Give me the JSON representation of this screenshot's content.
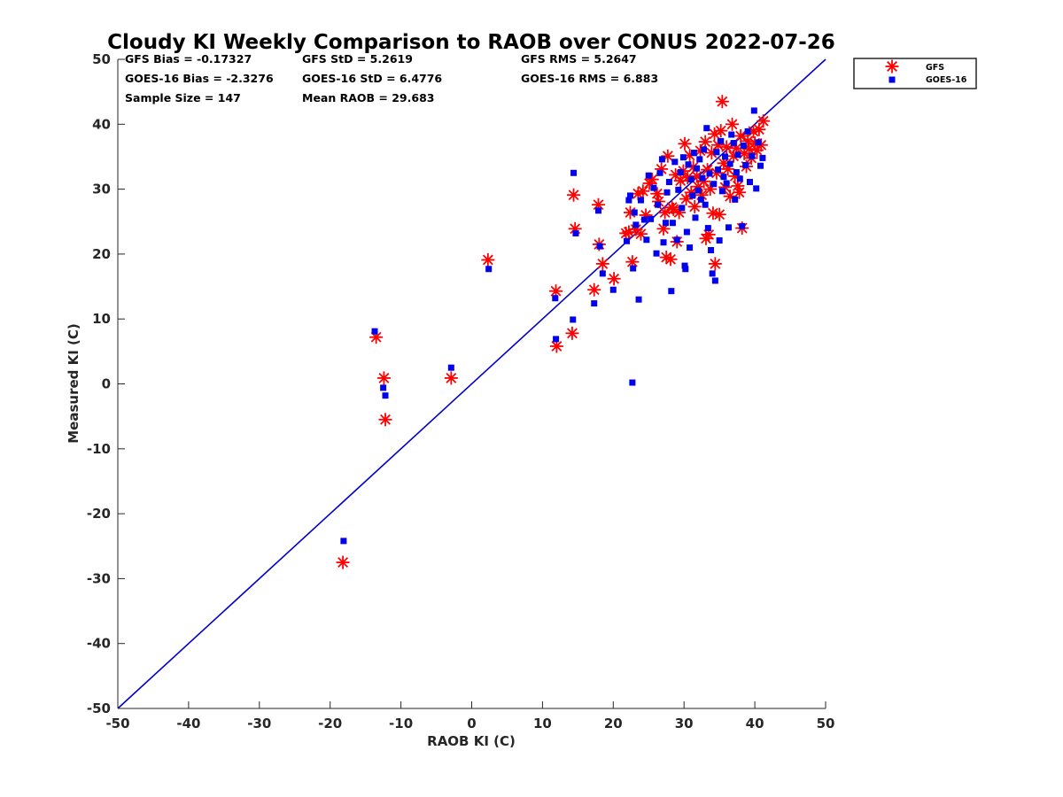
{
  "chart_data": {
    "type": "scatter",
    "title": "Cloudy KI Weekly Comparison to RAOB over CONUS 2022-07-26",
    "xlabel": "RAOB KI (C)",
    "ylabel": "Measured KI (C)",
    "xlim": [
      -50,
      50
    ],
    "ylim": [
      -50,
      50
    ],
    "xticks": [
      "-50",
      "-40",
      "-30",
      "-20",
      "-10",
      "0",
      "10",
      "20",
      "30",
      "40",
      "50"
    ],
    "yticks": [
      "-50",
      "-40",
      "-30",
      "-20",
      "-10",
      "0",
      "10",
      "20",
      "30",
      "40",
      "50"
    ],
    "grid": false,
    "legend_position": "outside-top-right",
    "reference_line": {
      "label": "",
      "x": [
        -50,
        50
      ],
      "y": [
        -50,
        50
      ],
      "color": "#0000cc"
    },
    "stats": [
      [
        "GFS Bias = -0.17327",
        "GFS StD = 5.2619",
        "GFS RMS = 5.2647"
      ],
      [
        "GOES-16 Bias = -2.3276",
        "GOES-16 StD = 6.4776",
        "GOES-16 RMS = 6.883"
      ],
      [
        "Sample Size = 147",
        "Mean RAOB = 29.683",
        ""
      ]
    ],
    "series": [
      {
        "name": "GFS",
        "marker": "asterisk",
        "color": "#ff0000",
        "points": [
          [
            -18.2,
            -27.5
          ],
          [
            -13.5,
            7.2
          ],
          [
            -12.4,
            0.9
          ],
          [
            -12.2,
            -5.5
          ],
          [
            -2.9,
            0.9
          ],
          [
            2.3,
            19.1
          ],
          [
            11.9,
            14.3
          ],
          [
            12.0,
            5.8
          ],
          [
            14.2,
            7.8
          ],
          [
            14.4,
            29.1
          ],
          [
            14.6,
            23.9
          ],
          [
            17.3,
            14.5
          ],
          [
            17.9,
            27.6
          ],
          [
            18.0,
            21.5
          ],
          [
            18.5,
            18.5
          ],
          [
            20.1,
            16.2
          ],
          [
            21.8,
            23.2
          ],
          [
            22.2,
            23.4
          ],
          [
            22.4,
            26.4
          ],
          [
            22.7,
            18.8
          ],
          [
            23.2,
            23.8
          ],
          [
            23.5,
            29.3
          ],
          [
            23.9,
            23.1
          ],
          [
            24.2,
            29.7
          ],
          [
            24.6,
            26.0
          ],
          [
            25.1,
            30.9
          ],
          [
            25.5,
            31.5
          ],
          [
            26.2,
            29.3
          ],
          [
            26.4,
            28.1
          ],
          [
            26.8,
            33.1
          ],
          [
            27.1,
            23.9
          ],
          [
            27.3,
            26.4
          ],
          [
            27.5,
            19.5
          ],
          [
            27.7,
            35.1
          ],
          [
            28.1,
            19.2
          ],
          [
            28.3,
            27.2
          ],
          [
            28.5,
            26.9
          ],
          [
            28.8,
            32.2
          ],
          [
            29.0,
            21.9
          ],
          [
            29.3,
            26.4
          ],
          [
            29.5,
            31.3
          ],
          [
            29.9,
            32.8
          ],
          [
            30.1,
            37.0
          ],
          [
            30.3,
            28.5
          ],
          [
            30.5,
            31.8
          ],
          [
            30.8,
            35.2
          ],
          [
            31.0,
            29.5
          ],
          [
            31.3,
            33.4
          ],
          [
            31.5,
            27.3
          ],
          [
            31.8,
            32.0
          ],
          [
            32.0,
            30.4
          ],
          [
            32.3,
            35.9
          ],
          [
            32.5,
            29.1
          ],
          [
            32.8,
            31.2
          ],
          [
            33.0,
            37.3
          ],
          [
            33.1,
            22.4
          ],
          [
            33.3,
            33.0
          ],
          [
            33.5,
            23.0
          ],
          [
            33.7,
            30.0
          ],
          [
            33.9,
            35.6
          ],
          [
            34.1,
            26.3
          ],
          [
            34.3,
            38.5
          ],
          [
            34.4,
            18.5
          ],
          [
            34.6,
            32.5
          ],
          [
            34.8,
            36.8
          ],
          [
            35.0,
            26.1
          ],
          [
            35.2,
            39.0
          ],
          [
            35.4,
            43.5
          ],
          [
            35.6,
            34.0
          ],
          [
            35.8,
            30.3
          ],
          [
            36.0,
            36.5
          ],
          [
            36.2,
            33.1
          ],
          [
            36.5,
            28.9
          ],
          [
            36.8,
            40.0
          ],
          [
            37.0,
            35.1
          ],
          [
            37.2,
            32.0
          ],
          [
            37.4,
            36.3
          ],
          [
            37.6,
            30.5
          ],
          [
            37.8,
            29.5
          ],
          [
            38.0,
            38.2
          ],
          [
            38.2,
            24.0
          ],
          [
            38.5,
            35.5
          ],
          [
            38.8,
            33.5
          ],
          [
            39.0,
            37.4
          ],
          [
            39.2,
            36.2
          ],
          [
            39.5,
            34.8
          ],
          [
            39.8,
            38.9
          ],
          [
            40.0,
            37.1
          ],
          [
            40.3,
            36.0
          ],
          [
            40.6,
            39.2
          ],
          [
            40.9,
            36.8
          ],
          [
            41.2,
            40.5
          ]
        ]
      },
      {
        "name": "GOES-16",
        "marker": "square",
        "color": "#0000ee",
        "points": [
          [
            -18.1,
            -24.2
          ],
          [
            -13.7,
            8.1
          ],
          [
            -12.5,
            -0.6
          ],
          [
            -12.2,
            -1.8
          ],
          [
            -2.9,
            2.5
          ],
          [
            2.4,
            17.7
          ],
          [
            11.8,
            13.2
          ],
          [
            11.9,
            6.9
          ],
          [
            14.3,
            9.9
          ],
          [
            14.4,
            32.5
          ],
          [
            14.7,
            23.2
          ],
          [
            17.3,
            12.4
          ],
          [
            17.9,
            26.7
          ],
          [
            18.1,
            21.2
          ],
          [
            18.5,
            17.0
          ],
          [
            20.0,
            14.5
          ],
          [
            21.9,
            22.0
          ],
          [
            22.2,
            28.3
          ],
          [
            22.4,
            29.0
          ],
          [
            22.7,
            0.2
          ],
          [
            22.8,
            17.8
          ],
          [
            23.0,
            26.4
          ],
          [
            23.2,
            24.5
          ],
          [
            23.6,
            13.0
          ],
          [
            23.9,
            28.3
          ],
          [
            24.4,
            25.3
          ],
          [
            24.7,
            22.2
          ],
          [
            25.0,
            32.1
          ],
          [
            25.3,
            25.4
          ],
          [
            25.7,
            30.2
          ],
          [
            26.1,
            20.1
          ],
          [
            26.3,
            27.6
          ],
          [
            26.6,
            32.5
          ],
          [
            26.9,
            34.6
          ],
          [
            27.1,
            21.8
          ],
          [
            27.4,
            24.8
          ],
          [
            27.6,
            29.5
          ],
          [
            27.9,
            31.1
          ],
          [
            28.2,
            14.3
          ],
          [
            28.4,
            24.8
          ],
          [
            28.7,
            34.2
          ],
          [
            29.0,
            22.2
          ],
          [
            29.2,
            29.9
          ],
          [
            29.5,
            32.6
          ],
          [
            29.7,
            27.1
          ],
          [
            29.9,
            34.9
          ],
          [
            30.1,
            18.2
          ],
          [
            30.2,
            17.7
          ],
          [
            30.4,
            23.4
          ],
          [
            30.6,
            33.8
          ],
          [
            30.8,
            21.0
          ],
          [
            31.0,
            31.5
          ],
          [
            31.2,
            29.0
          ],
          [
            31.4,
            35.6
          ],
          [
            31.6,
            25.6
          ],
          [
            31.8,
            33.2
          ],
          [
            32.0,
            29.8
          ],
          [
            32.2,
            34.6
          ],
          [
            32.4,
            28.4
          ],
          [
            32.6,
            31.7
          ],
          [
            32.8,
            36.1
          ],
          [
            33.0,
            27.6
          ],
          [
            33.2,
            39.4
          ],
          [
            33.4,
            24.0
          ],
          [
            33.6,
            32.4
          ],
          [
            33.8,
            20.6
          ],
          [
            34.0,
            17.0
          ],
          [
            34.2,
            30.8
          ],
          [
            34.4,
            15.9
          ],
          [
            34.6,
            35.7
          ],
          [
            34.8,
            33.0
          ],
          [
            35.0,
            22.1
          ],
          [
            35.2,
            37.4
          ],
          [
            35.4,
            29.7
          ],
          [
            35.6,
            31.9
          ],
          [
            35.8,
            35.0
          ],
          [
            36.0,
            30.9
          ],
          [
            36.3,
            24.1
          ],
          [
            36.5,
            33.9
          ],
          [
            36.7,
            38.4
          ],
          [
            37.0,
            37.1
          ],
          [
            37.2,
            28.4
          ],
          [
            37.4,
            32.6
          ],
          [
            37.6,
            35.3
          ],
          [
            37.9,
            31.6
          ],
          [
            38.2,
            24.3
          ],
          [
            38.4,
            36.7
          ],
          [
            38.7,
            33.7
          ],
          [
            39.0,
            38.9
          ],
          [
            39.3,
            31.1
          ],
          [
            39.6,
            35.1
          ],
          [
            39.9,
            42.1
          ],
          [
            40.2,
            30.1
          ],
          [
            40.5,
            37.2
          ],
          [
            40.8,
            33.6
          ],
          [
            41.1,
            34.8
          ]
        ]
      }
    ]
  }
}
